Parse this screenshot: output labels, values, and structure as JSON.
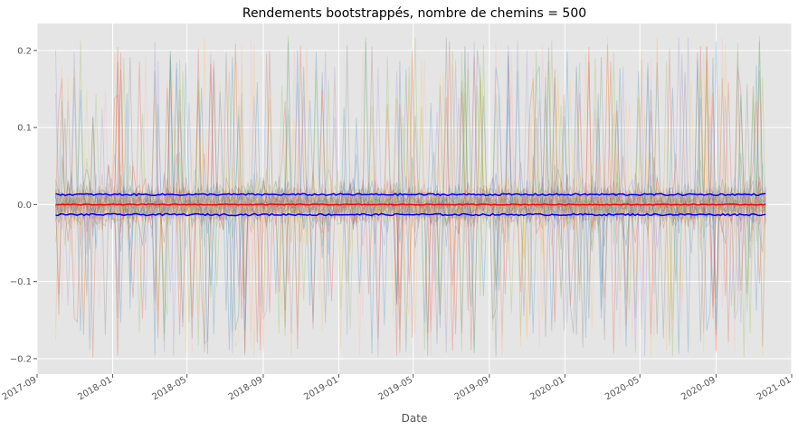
{
  "chart_data": {
    "type": "line",
    "title": "Rendements bootstrappés, nombre de chemins = 500",
    "xlabel": "Date",
    "ylabel": "",
    "x_range": [
      "2017-09-01",
      "2021-01-01"
    ],
    "x_data_range": [
      "2017-10-01",
      "2020-11-20"
    ],
    "ylim": [
      -0.22,
      0.235
    ],
    "x_ticks": [
      "2017-09",
      "2018-01",
      "2018-05",
      "2018-09",
      "2019-01",
      "2019-05",
      "2019-09",
      "2020-01",
      "2020-05",
      "2020-09",
      "2021-01"
    ],
    "y_ticks": [
      -0.2,
      -0.1,
      0.0,
      0.1,
      0.2
    ],
    "y_tick_labels": [
      "−0.2",
      "−0.1",
      "0.0",
      "0.1",
      "0.2"
    ],
    "grid": true,
    "style": "ggplot",
    "path_count": 500,
    "path_value_range": [
      -0.2,
      0.22
    ],
    "path_colors": [
      "#E24A33",
      "#348ABD",
      "#988ED5",
      "#777777",
      "#FBC15E",
      "#8EBA42",
      "#FFB5B8"
    ],
    "series": [
      {
        "color": "#ff0000",
        "kind": "mean",
        "approx_value": 0.0
      },
      {
        "color": "#0000ff",
        "kind": "upper_band",
        "approx_value": 0.013
      },
      {
        "color": "#0000ff",
        "kind": "lower_band",
        "approx_value": -0.013
      }
    ]
  }
}
